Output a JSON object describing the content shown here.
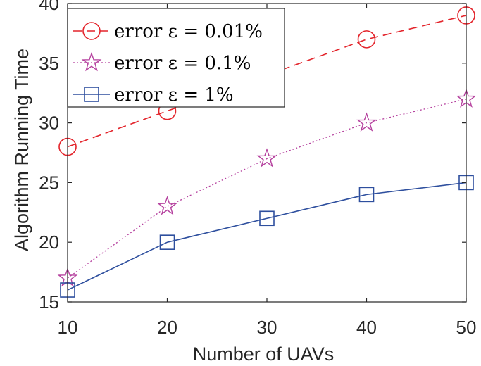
{
  "chart_data": {
    "type": "line",
    "xlabel": "Number of UAVs",
    "ylabel": "Algorithm Running Time",
    "x": [
      10,
      20,
      30,
      40,
      50
    ],
    "xlim": [
      10,
      50
    ],
    "ylim": [
      15,
      40
    ],
    "xticks": [
      "10",
      "20",
      "30",
      "40",
      "50"
    ],
    "yticks": [
      "15",
      "20",
      "25",
      "30",
      "35",
      "40"
    ],
    "grid": false,
    "legend_position": "top-left",
    "series": [
      {
        "name": "error ε = 0.01%",
        "values": [
          28,
          31,
          34,
          37,
          39
        ],
        "color": "#e3242b",
        "line": "dashed",
        "marker": "circle"
      },
      {
        "name": "error ε = 0.1%",
        "values": [
          17,
          23,
          27,
          30,
          32
        ],
        "color": "#b5409e",
        "line": "dotted",
        "marker": "star"
      },
      {
        "name": "error ε = 1%",
        "values": [
          16,
          20,
          22,
          24,
          25
        ],
        "color": "#2e4f9e",
        "line": "solid",
        "marker": "square"
      }
    ]
  }
}
